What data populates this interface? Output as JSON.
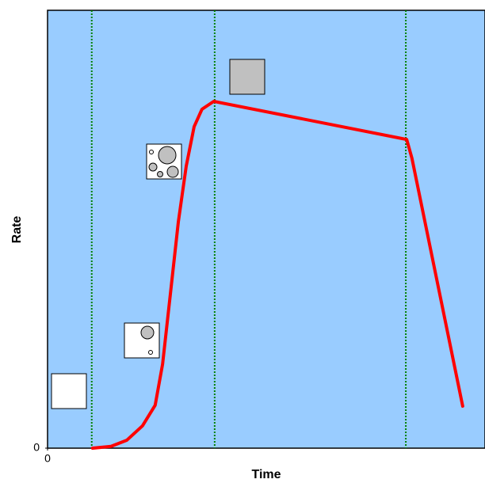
{
  "chart_data": {
    "type": "line",
    "x_label": "Time",
    "y_label": "Rate",
    "xlim": [
      0,
      100
    ],
    "ylim": [
      0,
      100
    ],
    "xticks": [
      0
    ],
    "yticks": [
      0
    ],
    "background": "#99ccff",
    "vlines": [
      10.1,
      38.2,
      81.9
    ],
    "vline_color": "#008000",
    "series": [
      {
        "color": "#ff0000",
        "x": [
          10.3,
          14.5,
          18.1,
          21.7,
          24.6,
          26.3,
          28.1,
          29.9,
          31.7,
          33.5,
          35.3,
          38.0,
          82.1,
          83.3,
          94.9
        ],
        "values": [
          0,
          0.4,
          1.8,
          5.1,
          9.8,
          19.2,
          35.4,
          51.7,
          64.4,
          73.4,
          77.4,
          79.2,
          70.5,
          66.2,
          9.6
        ]
      }
    ]
  }
}
